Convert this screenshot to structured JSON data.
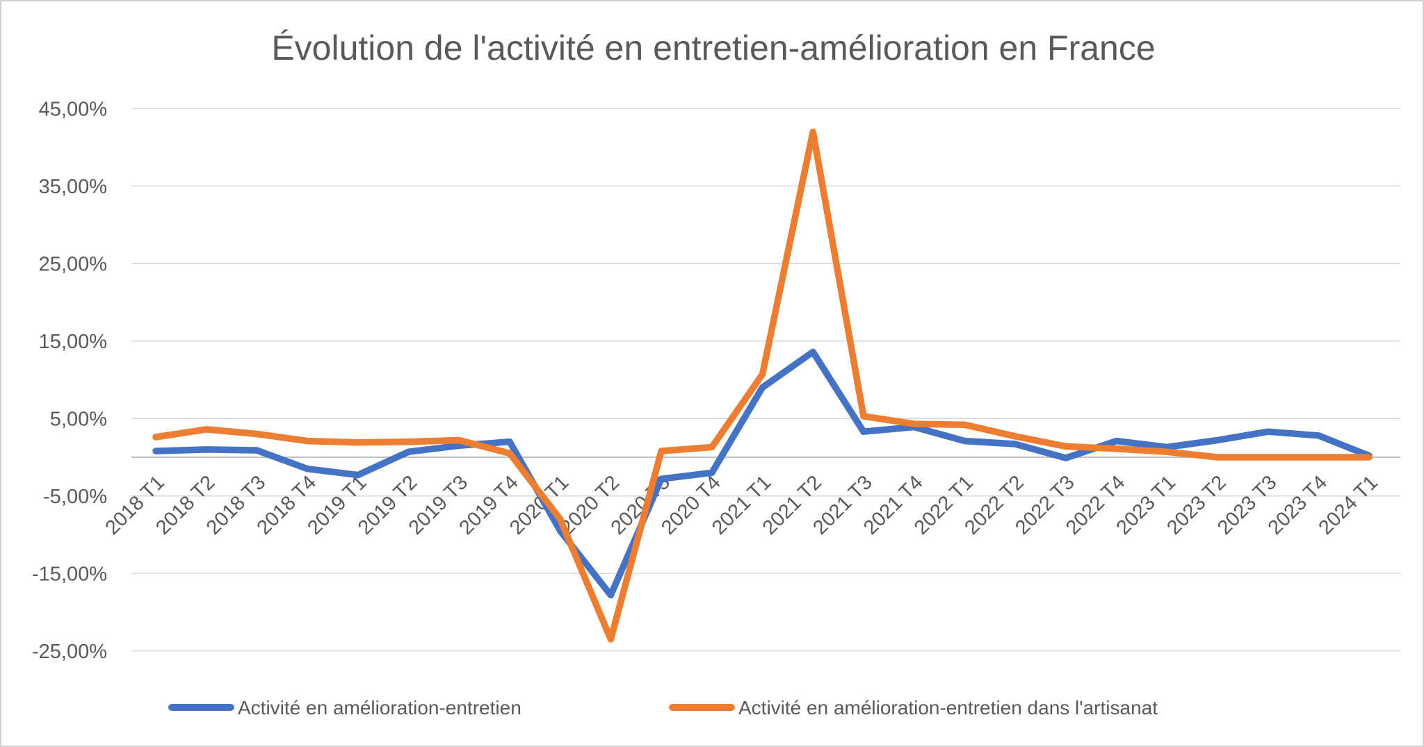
{
  "chart_data": {
    "type": "line",
    "title": "Évolution de l'activité en entretien-amélioration en France",
    "xlabel": "",
    "ylabel": "",
    "ylim": [
      -25,
      45
    ],
    "grid": true,
    "legend_position": "bottom",
    "y_ticks": [
      {
        "value": 45,
        "label": "45,00%"
      },
      {
        "value": 35,
        "label": "35,00%"
      },
      {
        "value": 25,
        "label": "25,00%"
      },
      {
        "value": 15,
        "label": "15,00%"
      },
      {
        "value": 5,
        "label": "5,00%"
      },
      {
        "value": -5,
        "label": "-5,00%"
      },
      {
        "value": -15,
        "label": "-15,00%"
      },
      {
        "value": -25,
        "label": "-25,00%"
      }
    ],
    "categories": [
      "2018 T1",
      "2018 T2",
      "2018 T3",
      "2018 T4",
      "2019 T1",
      "2019 T2",
      "2019 T3",
      "2019 T4",
      "2020 T1",
      "2020 T2",
      "2020 T3",
      "2020 T4",
      "2021 T1",
      "2021 T2",
      "2021 T3",
      "2021 T4",
      "2022 T1",
      "2022 T2",
      "2022 T3",
      "2022 T4",
      "2023 T1",
      "2023 T2",
      "2023 T3",
      "2023 T4",
      "2024 T1"
    ],
    "series": [
      {
        "name": "Activité en amélioration-entretien",
        "color": "#4472C4",
        "values": [
          0.8,
          1.0,
          0.9,
          -1.5,
          -2.3,
          0.7,
          1.5,
          2.0,
          -9.5,
          -17.8,
          -2.8,
          -2.0,
          9.0,
          13.6,
          3.3,
          3.9,
          2.1,
          1.7,
          -0.1,
          2.1,
          1.3,
          2.2,
          3.3,
          2.8,
          0.2
        ]
      },
      {
        "name": "Activité en amélioration-entretien dans l'artisanat",
        "color": "#ED7D31",
        "values": [
          2.6,
          3.6,
          3.0,
          2.1,
          1.9,
          2.0,
          2.2,
          0.5,
          -8.0,
          -23.5,
          0.8,
          1.3,
          10.7,
          42.0,
          5.3,
          4.3,
          4.2,
          2.7,
          1.4,
          1.1,
          0.7,
          0.0,
          0.0,
          0.0,
          0.0
        ]
      }
    ]
  }
}
